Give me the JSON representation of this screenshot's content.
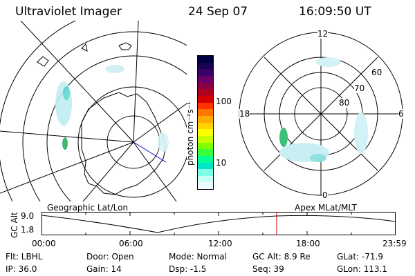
{
  "header": {
    "instrument": "Ultraviolet Imager",
    "date": "24 Sep 07",
    "time": "16:09:50 UT"
  },
  "colorbar": {
    "unit_label": "photon cm⁻²s⁻¹",
    "ticks": [
      "100",
      "10"
    ],
    "colors": [
      "#000040",
      "#1a0050",
      "#3a0066",
      "#660066",
      "#8b0044",
      "#b00020",
      "#d40000",
      "#ff3300",
      "#ff7700",
      "#ffaa00",
      "#ffd200",
      "#ffff00",
      "#c8ff00",
      "#80ff00",
      "#3cff3c",
      "#00ff96",
      "#00e6c8",
      "#7fffe6",
      "#c8fff5",
      "#eafaff"
    ]
  },
  "geo_panel": {
    "label": "Geographic Lat/Lon"
  },
  "apex_panel": {
    "label": "Apex MLat/MLT",
    "mlt_labels": {
      "top": "12",
      "left": "18",
      "right": "6",
      "bottom": "0"
    },
    "lat_labels": [
      "60",
      "70",
      "80"
    ]
  },
  "timeline": {
    "axis_title": "GC Alt",
    "y_ticks": [
      "9.0",
      "1.8"
    ],
    "x_ticks": [
      "00:00",
      "06:00",
      "12:00",
      "18:00",
      "23:59"
    ],
    "marker_color": "#cc0000"
  },
  "info": {
    "filter": "Flt: LBHL",
    "ip": "IP: 36.0",
    "door": "Door: Open",
    "gain": "Gain: 14",
    "mode": "Mode: Normal",
    "dsp": "Dsp:   -1.5",
    "gc_alt": "GC Alt: 8.9 Re",
    "seq": "Seq: 39",
    "glat": "GLat: -71.9",
    "glon": "GLon: 113.1"
  }
}
